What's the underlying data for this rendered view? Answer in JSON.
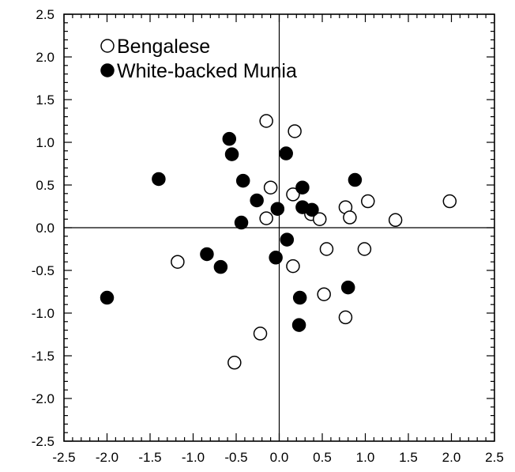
{
  "chart_data": {
    "type": "scatter",
    "title": "",
    "xlabel": "",
    "ylabel": "",
    "xlim": [
      -2.5,
      2.5
    ],
    "ylim": [
      -2.5,
      2.5
    ],
    "x_ticks": [
      "-2.5",
      "-2.0",
      "-1.5",
      "-1.0",
      "-0.5",
      "0.0",
      "0.5",
      "1.0",
      "1.5",
      "2.0",
      "2.5"
    ],
    "y_ticks": [
      "2.5",
      "2.0",
      "1.5",
      "1.0",
      "0.5",
      "0.0",
      "-0.5",
      "-1.0",
      "-1.5",
      "-2.0",
      "-2.5"
    ],
    "grid": false,
    "zero_lines": true,
    "legend_position": "top-left",
    "series": [
      {
        "name": "Bengalese",
        "marker": "open-circle",
        "color": "#000000",
        "x": [
          -0.15,
          0.18,
          -0.1,
          0.16,
          -0.15,
          0.37,
          0.47,
          0.77,
          0.82,
          1.03,
          1.35,
          1.98,
          -1.18,
          0.16,
          0.55,
          0.99,
          0.52,
          0.77,
          -0.22,
          -0.52
        ],
        "y": [
          1.25,
          1.13,
          0.47,
          0.39,
          0.11,
          0.16,
          0.1,
          0.24,
          0.12,
          0.31,
          0.09,
          0.31,
          -0.4,
          -0.45,
          -0.25,
          -0.25,
          -0.78,
          -1.05,
          -1.24,
          -1.58
        ]
      },
      {
        "name": "White-backed Munia",
        "marker": "filled-circle",
        "color": "#000000",
        "x": [
          -0.58,
          -0.55,
          -1.4,
          -0.42,
          0.08,
          -0.26,
          0.27,
          0.88,
          -0.02,
          0.27,
          0.38,
          -0.44,
          0.09,
          -0.04,
          -0.84,
          -0.68,
          -2.0,
          0.8,
          0.24,
          0.23
        ],
        "y": [
          1.04,
          0.86,
          0.57,
          0.55,
          0.87,
          0.32,
          0.47,
          0.56,
          0.22,
          0.24,
          0.21,
          0.06,
          -0.14,
          -0.35,
          -0.31,
          -0.46,
          -0.82,
          -0.7,
          -0.82,
          -1.14
        ]
      }
    ]
  }
}
